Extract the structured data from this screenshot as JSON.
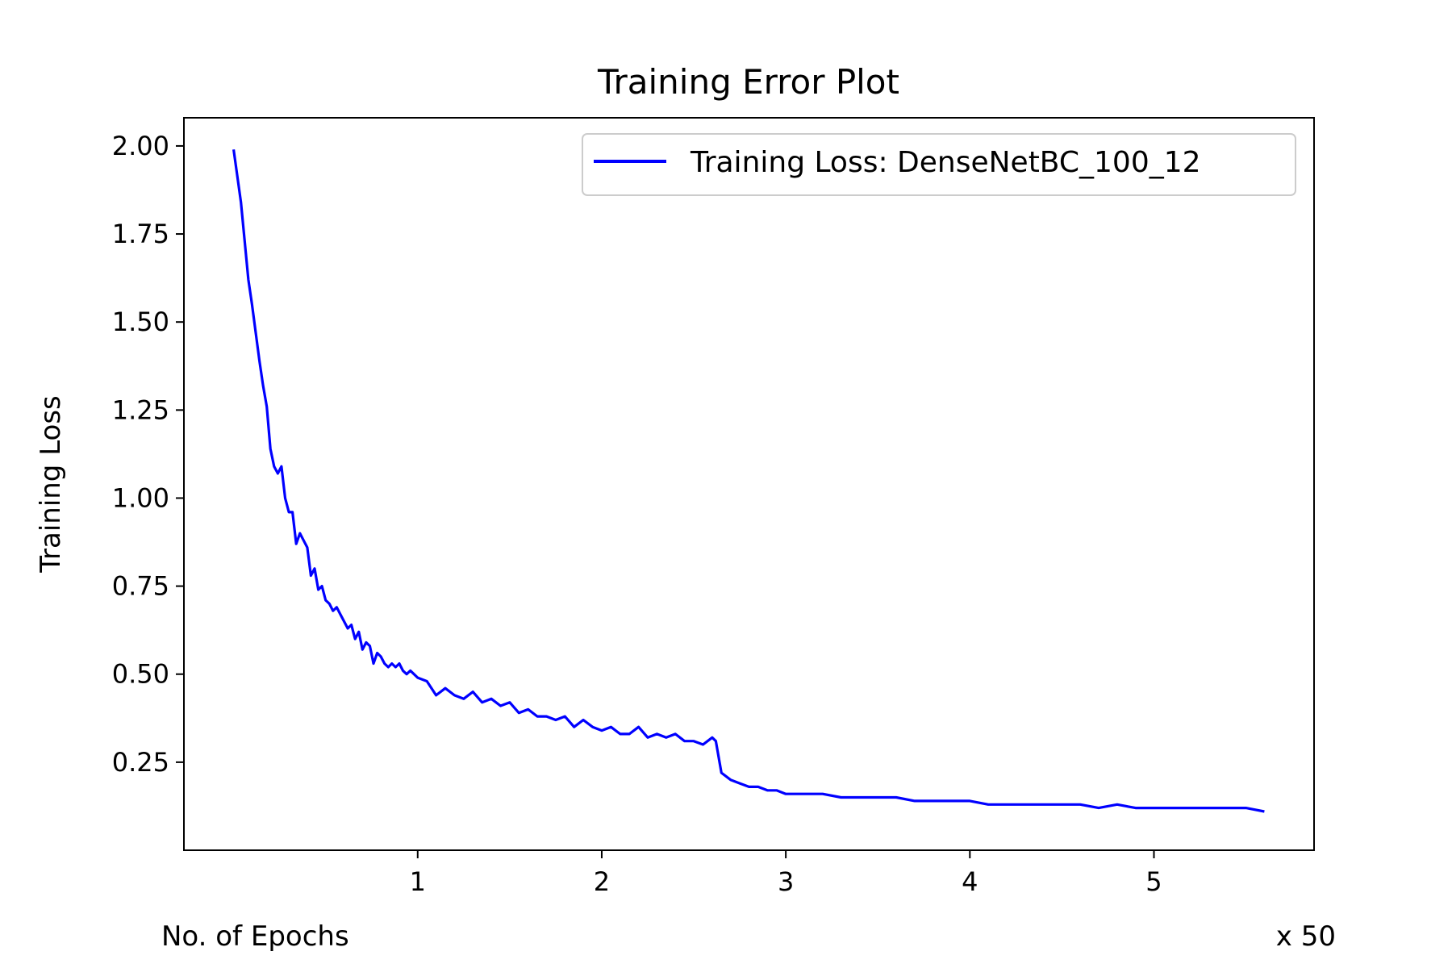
{
  "chart_data": {
    "type": "line",
    "title": "Training Error Plot",
    "xlabel": "No. of Epochs",
    "ylabel": "Training Loss",
    "x_multiplier_label": "x 50",
    "xlim": [
      -0.27,
      5.87
    ],
    "ylim": [
      0.0,
      2.08
    ],
    "x_ticks": [
      1,
      2,
      3,
      4,
      5
    ],
    "x_tick_labels": [
      "1",
      "2",
      "3",
      "4",
      "5"
    ],
    "y_ticks": [
      0.25,
      0.5,
      0.75,
      1.0,
      1.25,
      1.5,
      1.75,
      2.0
    ],
    "y_tick_labels": [
      "0.25",
      "0.50",
      "0.75",
      "1.00",
      "1.25",
      "1.50",
      "1.75",
      "2.00"
    ],
    "grid": false,
    "legend_position": "top-right",
    "series": [
      {
        "name": "Training Loss: DenseNetBC_100_12",
        "color": "#0000ff",
        "x": [
          0.0,
          0.04,
          0.08,
          0.1,
          0.12,
          0.14,
          0.16,
          0.18,
          0.2,
          0.22,
          0.24,
          0.26,
          0.28,
          0.3,
          0.32,
          0.34,
          0.36,
          0.38,
          0.4,
          0.42,
          0.44,
          0.46,
          0.48,
          0.5,
          0.52,
          0.54,
          0.56,
          0.58,
          0.6,
          0.62,
          0.64,
          0.66,
          0.68,
          0.7,
          0.72,
          0.74,
          0.76,
          0.78,
          0.8,
          0.82,
          0.84,
          0.86,
          0.88,
          0.9,
          0.92,
          0.94,
          0.96,
          0.98,
          1.0,
          1.05,
          1.1,
          1.15,
          1.2,
          1.25,
          1.3,
          1.35,
          1.4,
          1.45,
          1.5,
          1.55,
          1.6,
          1.65,
          1.7,
          1.75,
          1.8,
          1.85,
          1.9,
          1.95,
          2.0,
          2.05,
          2.1,
          2.15,
          2.2,
          2.25,
          2.3,
          2.35,
          2.4,
          2.45,
          2.5,
          2.55,
          2.6,
          2.62,
          2.65,
          2.7,
          2.75,
          2.8,
          2.85,
          2.9,
          2.95,
          3.0,
          3.1,
          3.2,
          3.3,
          3.4,
          3.5,
          3.6,
          3.7,
          3.8,
          3.9,
          4.0,
          4.1,
          4.2,
          4.3,
          4.4,
          4.5,
          4.6,
          4.7,
          4.8,
          4.9,
          5.0,
          5.1,
          5.2,
          5.3,
          5.4,
          5.5,
          5.6
        ],
        "y": [
          1.99,
          1.84,
          1.62,
          1.55,
          1.47,
          1.39,
          1.32,
          1.26,
          1.14,
          1.09,
          1.07,
          1.09,
          1.0,
          0.96,
          0.96,
          0.87,
          0.9,
          0.88,
          0.86,
          0.78,
          0.8,
          0.74,
          0.75,
          0.71,
          0.7,
          0.68,
          0.69,
          0.67,
          0.65,
          0.63,
          0.64,
          0.6,
          0.62,
          0.57,
          0.59,
          0.58,
          0.53,
          0.56,
          0.55,
          0.53,
          0.52,
          0.53,
          0.52,
          0.53,
          0.51,
          0.5,
          0.51,
          0.5,
          0.49,
          0.48,
          0.44,
          0.46,
          0.44,
          0.43,
          0.45,
          0.42,
          0.43,
          0.41,
          0.42,
          0.39,
          0.4,
          0.38,
          0.38,
          0.37,
          0.38,
          0.35,
          0.37,
          0.35,
          0.34,
          0.35,
          0.33,
          0.33,
          0.35,
          0.32,
          0.33,
          0.32,
          0.33,
          0.31,
          0.31,
          0.3,
          0.32,
          0.31,
          0.22,
          0.2,
          0.19,
          0.18,
          0.18,
          0.17,
          0.17,
          0.16,
          0.16,
          0.16,
          0.15,
          0.15,
          0.15,
          0.15,
          0.14,
          0.14,
          0.14,
          0.14,
          0.13,
          0.13,
          0.13,
          0.13,
          0.13,
          0.13,
          0.12,
          0.13,
          0.12,
          0.12,
          0.12,
          0.12,
          0.12,
          0.12,
          0.12,
          0.11
        ]
      }
    ]
  }
}
